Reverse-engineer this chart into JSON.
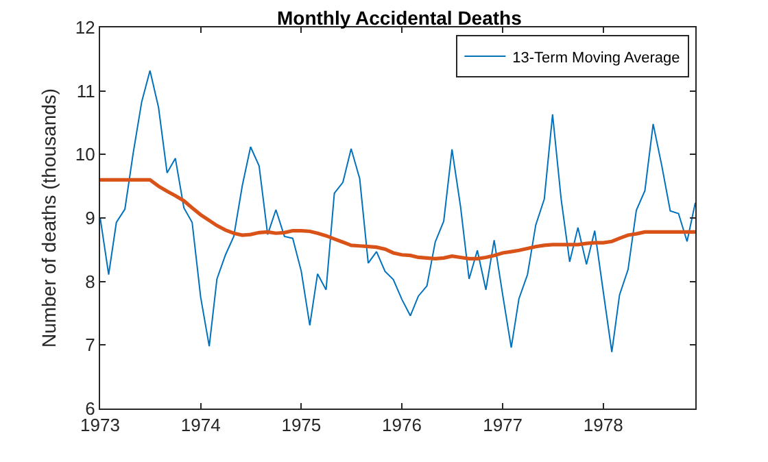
{
  "chart_data": {
    "type": "line",
    "title": "Monthly Accidental Deaths",
    "ylabel": "Number of deaths (thousands)",
    "x": [
      "1973-01",
      "1973-02",
      "1973-03",
      "1973-04",
      "1973-05",
      "1973-06",
      "1973-07",
      "1973-08",
      "1973-09",
      "1973-10",
      "1973-11",
      "1973-12",
      "1974-01",
      "1974-02",
      "1974-03",
      "1974-04",
      "1974-05",
      "1974-06",
      "1974-07",
      "1974-08",
      "1974-09",
      "1974-10",
      "1974-11",
      "1974-12",
      "1975-01",
      "1975-02",
      "1975-03",
      "1975-04",
      "1975-05",
      "1975-06",
      "1975-07",
      "1975-08",
      "1975-09",
      "1975-10",
      "1975-11",
      "1975-12",
      "1976-01",
      "1976-02",
      "1976-03",
      "1976-04",
      "1976-05",
      "1976-06",
      "1976-07",
      "1976-08",
      "1976-09",
      "1976-10",
      "1976-11",
      "1976-12",
      "1977-01",
      "1977-02",
      "1977-03",
      "1977-04",
      "1977-05",
      "1977-06",
      "1977-07",
      "1977-08",
      "1977-09",
      "1977-10",
      "1977-11",
      "1977-12",
      "1978-01",
      "1978-02",
      "1978-03",
      "1978-04",
      "1978-05",
      "1978-06",
      "1978-07",
      "1978-08",
      "1978-09",
      "1978-10",
      "1978-11",
      "1978-12"
    ],
    "series": [
      {
        "name": "13-Term Moving Average",
        "color": "#0072bd",
        "values": [
          9.01,
          8.11,
          8.93,
          9.14,
          10.02,
          10.83,
          11.32,
          10.74,
          9.71,
          9.94,
          9.16,
          8.93,
          7.75,
          6.98,
          8.04,
          8.42,
          8.71,
          9.51,
          10.12,
          9.82,
          8.74,
          9.13,
          8.71,
          8.68,
          8.16,
          7.31,
          8.12,
          7.87,
          9.39,
          9.56,
          10.09,
          9.62,
          8.29,
          8.47,
          8.16,
          8.03,
          7.72,
          7.46,
          7.77,
          7.93,
          8.62,
          8.95,
          10.08,
          9.18,
          8.04,
          8.49,
          7.87,
          8.65,
          7.79,
          6.96,
          7.73,
          8.11,
          8.89,
          9.3,
          10.63,
          9.3,
          8.31,
          8.85,
          8.27,
          8.8,
          7.84,
          6.89,
          7.79,
          8.19,
          9.12,
          9.43,
          10.48,
          9.83,
          9.11,
          9.07,
          8.63,
          9.24
        ]
      },
      {
        "color": "#d95319",
        "values": [
          9.6,
          9.6,
          9.6,
          9.6,
          9.6,
          9.6,
          9.6,
          9.5,
          9.42,
          9.35,
          9.27,
          9.16,
          9.05,
          8.96,
          8.88,
          8.81,
          8.76,
          8.73,
          8.74,
          8.77,
          8.78,
          8.76,
          8.77,
          8.8,
          8.8,
          8.79,
          8.76,
          8.72,
          8.67,
          8.62,
          8.57,
          8.56,
          8.55,
          8.54,
          8.51,
          8.45,
          8.42,
          8.41,
          8.38,
          8.37,
          8.36,
          8.37,
          8.4,
          8.38,
          8.36,
          8.36,
          8.38,
          8.41,
          8.45,
          8.47,
          8.49,
          8.52,
          8.55,
          8.57,
          8.58,
          8.58,
          8.58,
          8.58,
          8.6,
          8.61,
          8.61,
          8.63,
          8.68,
          8.73,
          8.75,
          8.78,
          8.78,
          8.78,
          8.78,
          8.78,
          8.78,
          8.78
        ]
      }
    ],
    "xlim": [
      "1973-01",
      "1978-12"
    ],
    "xticks": [
      {
        "value": "1973",
        "label": "1973"
      },
      {
        "value": "1974",
        "label": "1974"
      },
      {
        "value": "1975",
        "label": "1975"
      },
      {
        "value": "1976",
        "label": "1976"
      },
      {
        "value": "1977",
        "label": "1977"
      },
      {
        "value": "1978",
        "label": "1978"
      }
    ],
    "ylim": [
      6,
      12
    ],
    "yticks": [
      6,
      7,
      8,
      9,
      10,
      11,
      12
    ],
    "grid": false,
    "legend": "top right",
    "marker": "none",
    "line_style": "solid"
  }
}
